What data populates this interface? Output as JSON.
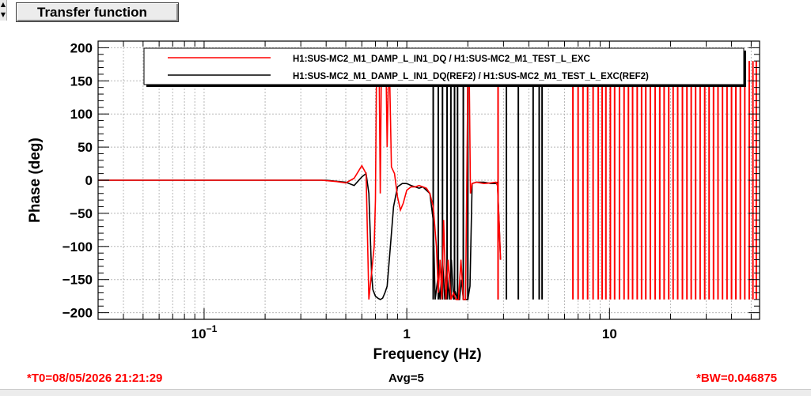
{
  "window": {
    "title_button": "Transfer function",
    "scroll_up_glyph": "▲",
    "scroll_down_glyph": "▼"
  },
  "status": {
    "t0": "*T0=08/05/2026 21:21:29",
    "avg": "Avg=5",
    "bw": "*BW=0.046875"
  },
  "colors": {
    "series_live": "#ff0000",
    "series_ref": "#000000",
    "status_red": "#ff0000"
  },
  "chart_data": {
    "type": "line",
    "xlabel": "Frequency (Hz)",
    "ylabel": "Phase (deg)",
    "xscale": "log",
    "xlim": [
      0.03,
      55
    ],
    "ylim": [
      -210,
      210
    ],
    "grid": true,
    "legend_position": "top",
    "xticks_major": [
      {
        "value": 0.1,
        "label": "10",
        "sup": "−1"
      },
      {
        "value": 1,
        "label": "1"
      },
      {
        "value": 10,
        "label": "10"
      }
    ],
    "yticks": [
      -200,
      -150,
      -100,
      -50,
      0,
      50,
      100,
      150,
      200
    ],
    "ytick_labels": [
      "−200",
      "−150",
      "−100",
      "−50",
      "0",
      "50",
      "100",
      "150",
      "200"
    ],
    "series": [
      {
        "name": "H1:SUS-MC2_M1_DAMP_L_IN1_DQ / H1:SUS-MC2_M1_TEST_L_EXC",
        "color": "#ff0000",
        "x": [
          0.03,
          0.1,
          0.3,
          0.38,
          0.45,
          0.5,
          0.55,
          0.6,
          0.63,
          0.65,
          0.67,
          0.69,
          0.7,
          0.71,
          0.73,
          0.74,
          0.75,
          0.76,
          0.77,
          0.78,
          0.79,
          0.8,
          0.81,
          0.82,
          0.84,
          0.87,
          0.9,
          0.93,
          0.96,
          1.0,
          1.05,
          1.1,
          1.15,
          1.2,
          1.25,
          1.3,
          1.35,
          1.4,
          1.43,
          1.46,
          1.49,
          1.52,
          1.56,
          1.6,
          1.65,
          1.7,
          1.75,
          1.8,
          1.85,
          1.9,
          1.95,
          2.0,
          2.03,
          2.06,
          2.1,
          2.2,
          2.4,
          2.6,
          2.75,
          2.8,
          2.85,
          2.9
        ],
        "y": [
          0,
          0,
          0,
          0,
          -2,
          -4,
          3,
          22,
          10,
          -180,
          -140,
          -100,
          -30,
          180,
          180,
          -20,
          180,
          180,
          150,
          180,
          170,
          50,
          140,
          180,
          20,
          10,
          -25,
          -45,
          -35,
          -15,
          -10,
          -10,
          -8,
          -10,
          -12,
          -20,
          -40,
          -100,
          -170,
          -120,
          -180,
          -60,
          -180,
          -120,
          -180,
          -170,
          -180,
          -180,
          -120,
          -180,
          -180,
          150,
          180,
          -20,
          -5,
          -3,
          -5,
          -4,
          -3,
          -8,
          -60,
          -120
        ]
      },
      {
        "name": "H1:SUS-MC2_M1_DAMP_L_IN1_DQ(REF2) / H1:SUS-MC2_M1_TEST_L_EXC(REF2)",
        "color": "#000000",
        "x": [
          0.03,
          0.1,
          0.3,
          0.4,
          0.5,
          0.55,
          0.6,
          0.63,
          0.65,
          0.66,
          0.67,
          0.68,
          0.7,
          0.72,
          0.74,
          0.76,
          0.78,
          0.8,
          0.83,
          0.86,
          0.9,
          0.95,
          1.0,
          1.05,
          1.1,
          1.15,
          1.2,
          1.3,
          1.35,
          1.38,
          1.42,
          1.46,
          1.5,
          1.54,
          1.58,
          1.62,
          1.66,
          1.7,
          1.74,
          1.78,
          1.82,
          1.86,
          1.9,
          1.95,
          2.0,
          2.05,
          2.1,
          2.2,
          2.4,
          2.6,
          2.75,
          2.8,
          2.85,
          2.9
        ],
        "y": [
          0,
          0,
          0,
          0,
          -3,
          -8,
          5,
          10,
          -20,
          -80,
          -140,
          -165,
          -175,
          -178,
          -180,
          -178,
          -170,
          -160,
          -100,
          -40,
          -10,
          -5,
          -5,
          -8,
          -10,
          -12,
          -10,
          -20,
          -60,
          -180,
          -150,
          -180,
          -120,
          -180,
          -140,
          -180,
          -120,
          -180,
          -170,
          -180,
          -180,
          -150,
          -180,
          -180,
          -180,
          -160,
          -5,
          -3,
          -3,
          -5,
          -5,
          -3,
          -60,
          -120
        ]
      }
    ],
    "ref_spike_x": [
      1.35,
      1.43,
      1.5,
      1.58,
      1.65,
      1.72,
      1.78,
      1.9,
      2.0,
      2.82,
      3.1,
      3.55,
      4.2,
      4.5,
      4.65
    ],
    "red_spike_x": [
      2.82,
      6.6,
      7.0,
      7.4,
      7.8,
      8.3,
      8.8,
      9.2,
      9.6,
      10.1,
      10.6,
      11.2,
      11.8,
      12.4,
      13.0,
      13.7,
      14.4,
      15.1,
      15.9,
      16.8,
      17.7,
      18.6,
      19.6,
      20.6,
      21.7,
      22.9,
      24.1,
      25.3,
      26.6,
      28.0,
      29.5,
      31.0,
      32.6,
      34.3,
      36.1,
      38.0,
      40.0,
      42.0,
      44.2,
      46.5,
      48.9,
      51.0,
      53.0
    ]
  }
}
